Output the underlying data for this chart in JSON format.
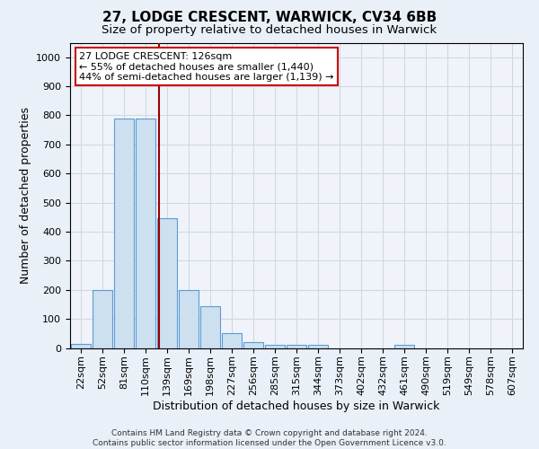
{
  "title1": "27, LODGE CRESCENT, WARWICK, CV34 6BB",
  "title2": "Size of property relative to detached houses in Warwick",
  "xlabel": "Distribution of detached houses by size in Warwick",
  "ylabel": "Number of detached properties",
  "footer1": "Contains HM Land Registry data © Crown copyright and database right 2024.",
  "footer2": "Contains public sector information licensed under the Open Government Licence v3.0.",
  "bin_labels": [
    "22sqm",
    "52sqm",
    "81sqm",
    "110sqm",
    "139sqm",
    "169sqm",
    "198sqm",
    "227sqm",
    "256sqm",
    "285sqm",
    "315sqm",
    "344sqm",
    "373sqm",
    "402sqm",
    "432sqm",
    "461sqm",
    "490sqm",
    "519sqm",
    "549sqm",
    "578sqm",
    "607sqm"
  ],
  "bar_values": [
    15,
    200,
    790,
    790,
    445,
    200,
    145,
    50,
    20,
    10,
    10,
    10,
    0,
    0,
    0,
    10,
    0,
    0,
    0,
    0,
    0
  ],
  "bar_color": "#cce0f0",
  "bar_edge_color": "#5b9bd5",
  "grid_color": "#d0d8e4",
  "vline_x": 3.62,
  "vline_color": "#990000",
  "annotation_line1": "27 LODGE CRESCENT: 126sqm",
  "annotation_line2": "← 55% of detached houses are smaller (1,440)",
  "annotation_line3": "44% of semi-detached houses are larger (1,139) →",
  "annotation_box_color": "#cc0000",
  "ylim": [
    0,
    1050
  ],
  "yticks": [
    0,
    100,
    200,
    300,
    400,
    500,
    600,
    700,
    800,
    900,
    1000
  ],
  "bg_color": "#eaf0f8",
  "plot_bg_color": "#f0f4fa",
  "title1_fontsize": 11,
  "title2_fontsize": 9.5,
  "annot_fontsize": 8,
  "tick_fontsize": 8,
  "ylabel_fontsize": 9,
  "xlabel_fontsize": 9,
  "footer_fontsize": 6.5
}
